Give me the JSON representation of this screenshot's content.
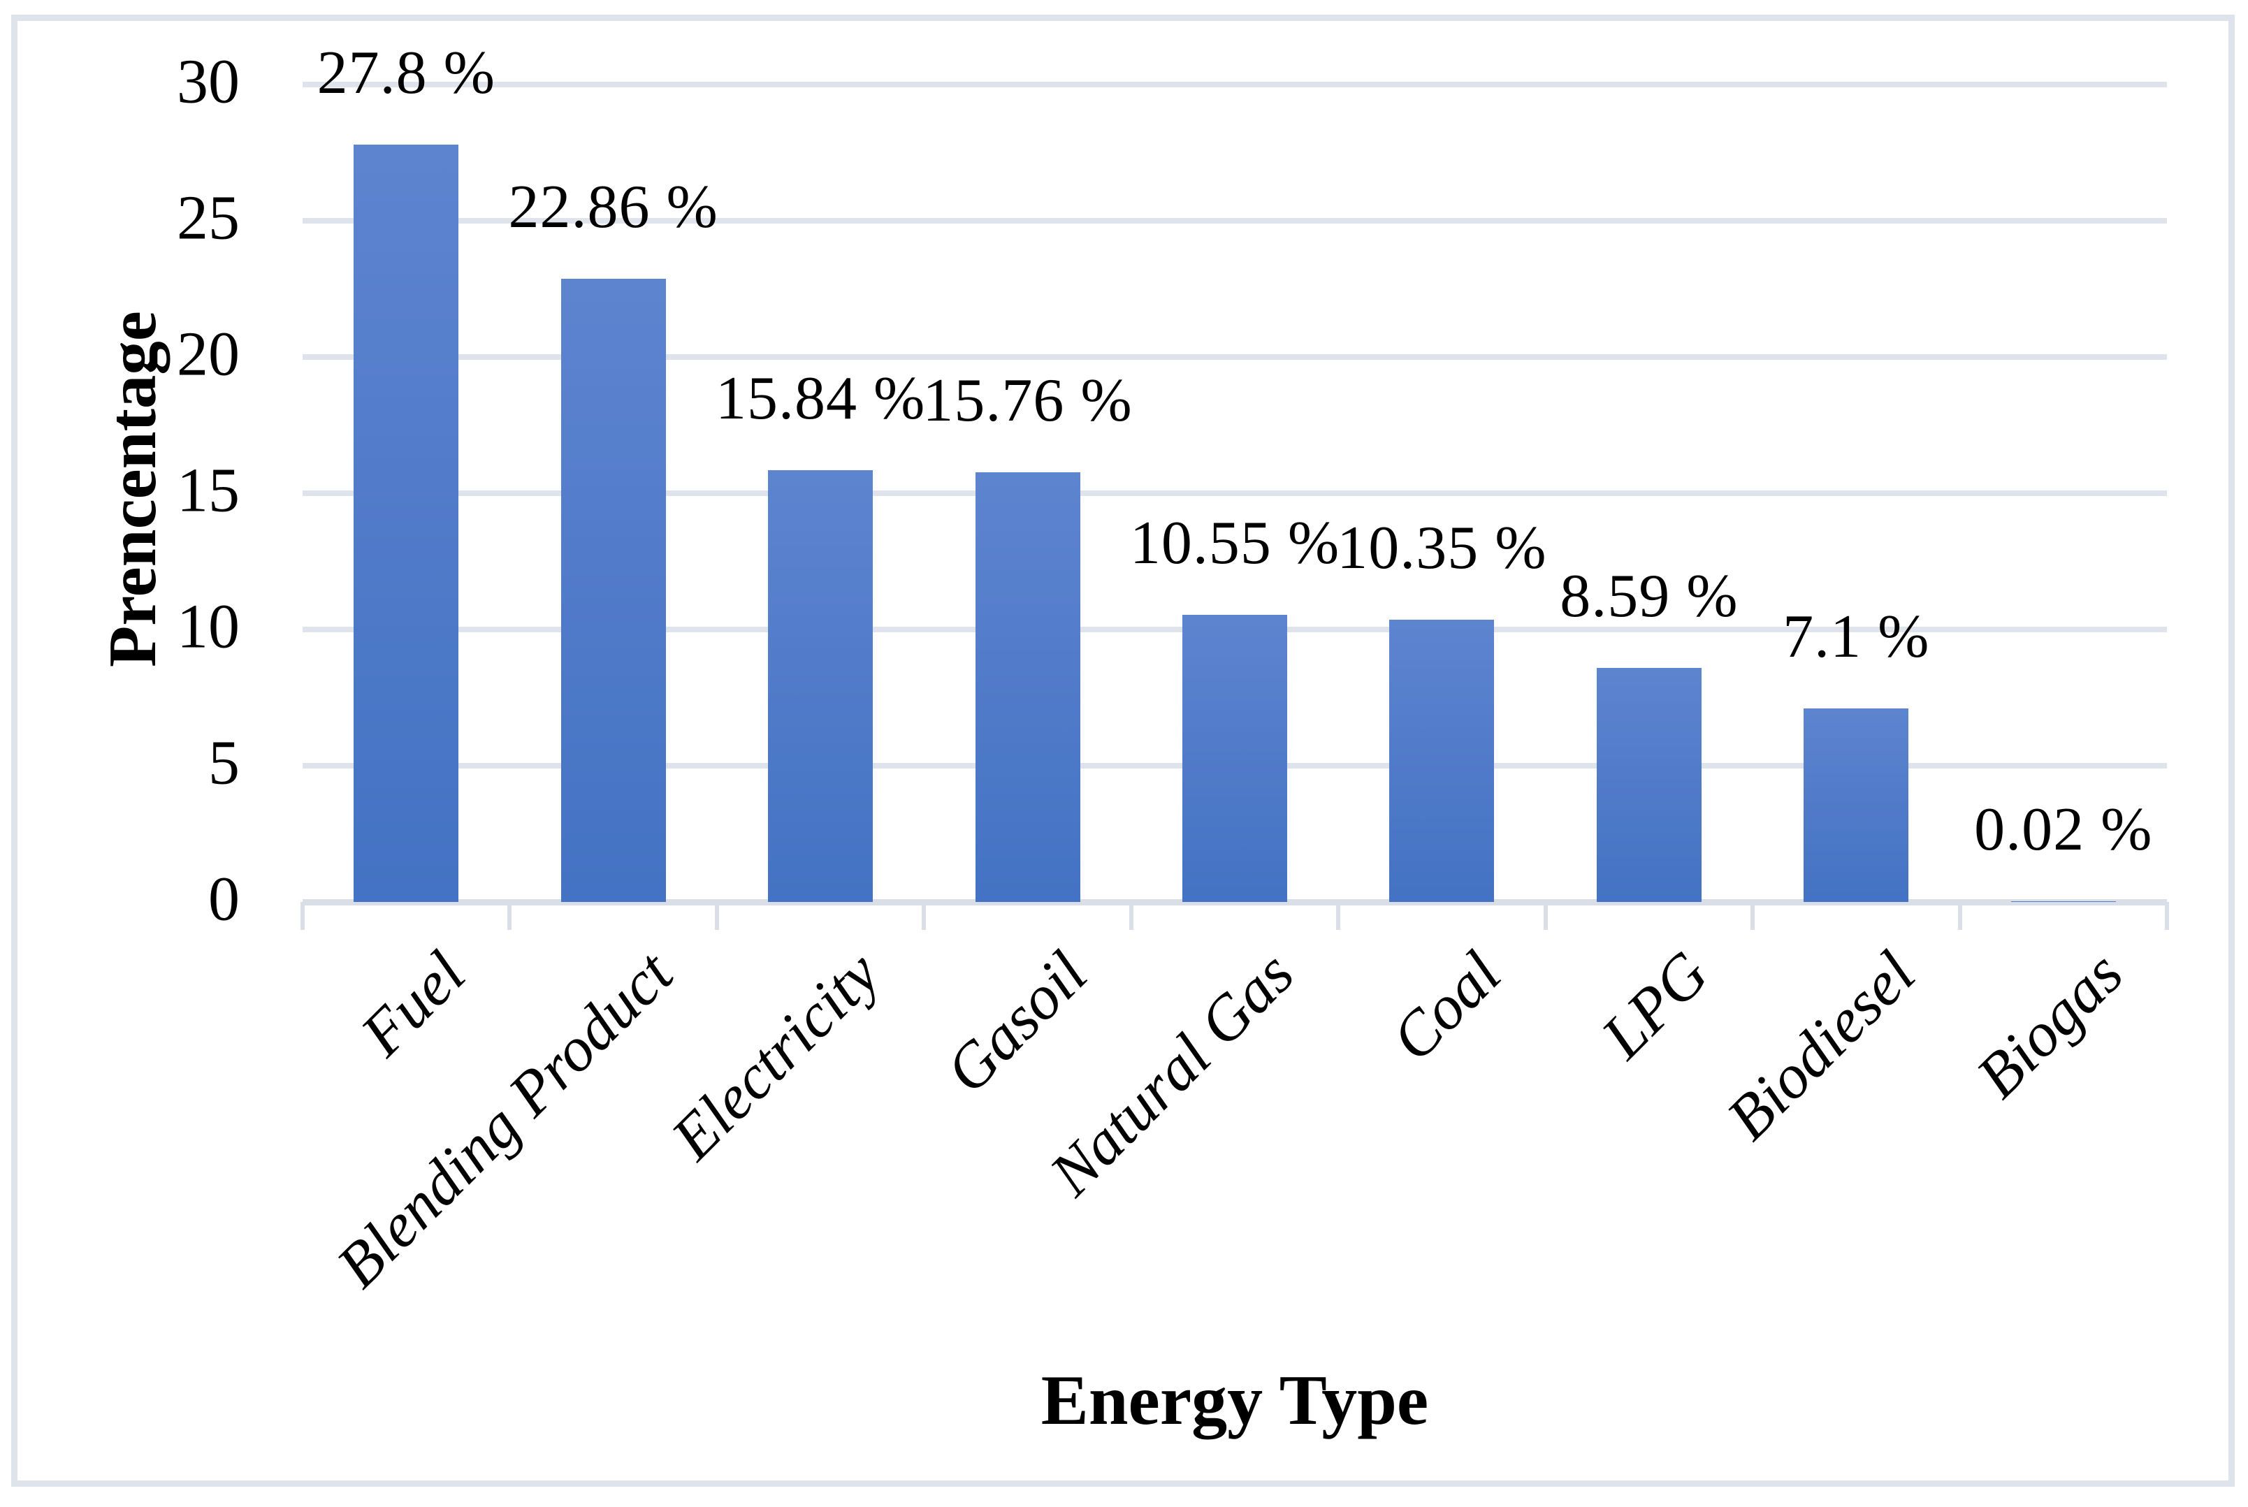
{
  "chart_data": {
    "type": "bar",
    "title": "",
    "xlabel": "Energy Type",
    "ylabel": "Prencentage",
    "categories": [
      "Fuel",
      "Blending Product",
      "Electricity",
      "Gasoil",
      "Natural Gas",
      "Coal",
      "LPG",
      "Biodiesel",
      "Biogas"
    ],
    "values": [
      27.8,
      22.86,
      15.84,
      15.76,
      10.55,
      10.35,
      8.59,
      7.1,
      0.02
    ],
    "data_labels": [
      "27.8 %",
      "22.86 %",
      "15.84 %",
      "15.76 %",
      "10.55 %",
      "10.35 %",
      "8.59 %",
      "7.1 %",
      "0.02 %"
    ],
    "ylim": [
      0,
      30
    ],
    "yticks": [
      0,
      5,
      10,
      15,
      20,
      25,
      30
    ],
    "ytick_labels": [
      "0",
      "5",
      "10",
      "15",
      "20",
      "25",
      "30"
    ],
    "grid": true,
    "legend_position": "none",
    "colors": {
      "bar_top": "#5d84cf",
      "bar_bottom": "#4472c4",
      "gridline": "#dfe3eb",
      "axis": "#d9dee7",
      "chart_border": "#dfe3ec",
      "text": "#000000",
      "background": "#ffffff"
    }
  }
}
